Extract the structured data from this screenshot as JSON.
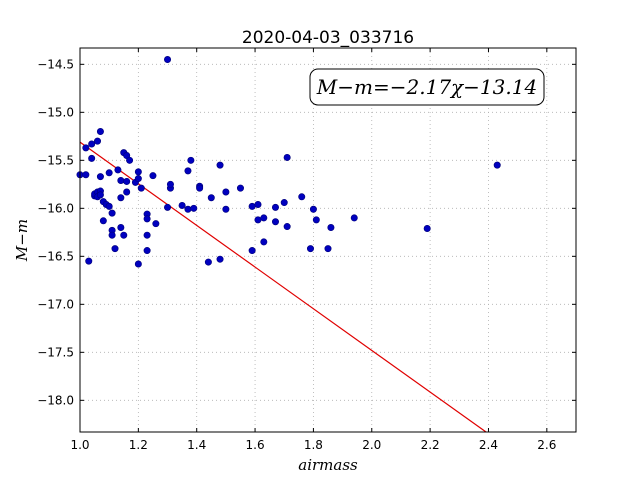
{
  "chart_data": {
    "type": "scatter",
    "title": "2020-04-03_033716",
    "xlabel": "airmass",
    "ylabel": "M−m",
    "xlim": [
      1.0,
      2.7
    ],
    "ylim": [
      -18.33,
      -14.33
    ],
    "y_inverted": true,
    "grid": true,
    "x_ticks": [
      1.0,
      1.2,
      1.4,
      1.6,
      1.8,
      2.0,
      2.2,
      2.4,
      2.6
    ],
    "x_tick_labels": [
      "1.0",
      "1.2",
      "1.4",
      "1.6",
      "1.8",
      "2.0",
      "2.2",
      "2.4",
      "2.6"
    ],
    "y_ticks": [
      -14.5,
      -15.0,
      -15.5,
      -16.0,
      -16.5,
      -17.0,
      -17.5,
      -18.0
    ],
    "y_tick_labels": [
      "−14.5",
      "−15.0",
      "−15.5",
      "−16.0",
      "−16.5",
      "−17.0",
      "−17.5",
      "−18.0"
    ],
    "fit_label": "M−m=−2.17χ−13.14",
    "fit": {
      "slope": -2.17,
      "intercept": -13.14
    },
    "colors": {
      "points": "#0000bf",
      "fit": "#e00000",
      "grid": "#b0b0b0"
    },
    "points": [
      [
        1.0,
        -15.65
      ],
      [
        1.02,
        -15.37
      ],
      [
        1.02,
        -15.65
      ],
      [
        1.03,
        -16.55
      ],
      [
        1.04,
        -15.33
      ],
      [
        1.04,
        -15.48
      ],
      [
        1.05,
        -15.87
      ],
      [
        1.05,
        -15.85
      ],
      [
        1.06,
        -15.3
      ],
      [
        1.06,
        -15.83
      ],
      [
        1.06,
        -15.88
      ],
      [
        1.07,
        -15.2
      ],
      [
        1.07,
        -15.82
      ],
      [
        1.07,
        -15.86
      ],
      [
        1.07,
        -15.67
      ],
      [
        1.08,
        -16.13
      ],
      [
        1.08,
        -15.93
      ],
      [
        1.09,
        -15.96
      ],
      [
        1.1,
        -15.98
      ],
      [
        1.1,
        -15.63
      ],
      [
        1.11,
        -16.05
      ],
      [
        1.11,
        -16.23
      ],
      [
        1.11,
        -16.28
      ],
      [
        1.12,
        -16.42
      ],
      [
        1.13,
        -15.6
      ],
      [
        1.14,
        -15.71
      ],
      [
        1.14,
        -15.89
      ],
      [
        1.14,
        -16.2
      ],
      [
        1.15,
        -15.42
      ],
      [
        1.15,
        -16.28
      ],
      [
        1.16,
        -15.83
      ],
      [
        1.16,
        -15.72
      ],
      [
        1.16,
        -15.45
      ],
      [
        1.17,
        -15.5
      ],
      [
        1.19,
        -15.73
      ],
      [
        1.2,
        -15.69
      ],
      [
        1.2,
        -16.58
      ],
      [
        1.2,
        -15.62
      ],
      [
        1.21,
        -15.79
      ],
      [
        1.23,
        -16.06
      ],
      [
        1.23,
        -16.11
      ],
      [
        1.23,
        -16.28
      ],
      [
        1.23,
        -16.44
      ],
      [
        1.25,
        -15.66
      ],
      [
        1.26,
        -16.16
      ],
      [
        1.3,
        -14.45
      ],
      [
        1.3,
        -15.99
      ],
      [
        1.31,
        -15.79
      ],
      [
        1.31,
        -15.75
      ],
      [
        1.35,
        -15.97
      ],
      [
        1.37,
        -15.61
      ],
      [
        1.37,
        -16.01
      ],
      [
        1.38,
        -15.5
      ],
      [
        1.39,
        -16.0
      ],
      [
        1.41,
        -15.77
      ],
      [
        1.41,
        -15.79
      ],
      [
        1.44,
        -16.56
      ],
      [
        1.45,
        -15.89
      ],
      [
        1.48,
        -16.53
      ],
      [
        1.48,
        -15.55
      ],
      [
        1.5,
        -15.83
      ],
      [
        1.5,
        -16.01
      ],
      [
        1.55,
        -15.79
      ],
      [
        1.59,
        -15.98
      ],
      [
        1.59,
        -16.44
      ],
      [
        1.61,
        -15.96
      ],
      [
        1.61,
        -16.12
      ],
      [
        1.63,
        -16.35
      ],
      [
        1.63,
        -16.1
      ],
      [
        1.67,
        -15.99
      ],
      [
        1.67,
        -16.14
      ],
      [
        1.7,
        -15.94
      ],
      [
        1.71,
        -15.47
      ],
      [
        1.71,
        -16.19
      ],
      [
        1.76,
        -15.88
      ],
      [
        1.79,
        -16.42
      ],
      [
        1.8,
        -16.01
      ],
      [
        1.81,
        -16.12
      ],
      [
        1.85,
        -16.42
      ],
      [
        1.86,
        -16.2
      ],
      [
        1.94,
        -16.1
      ],
      [
        2.19,
        -16.21
      ],
      [
        2.43,
        -15.55
      ]
    ]
  }
}
